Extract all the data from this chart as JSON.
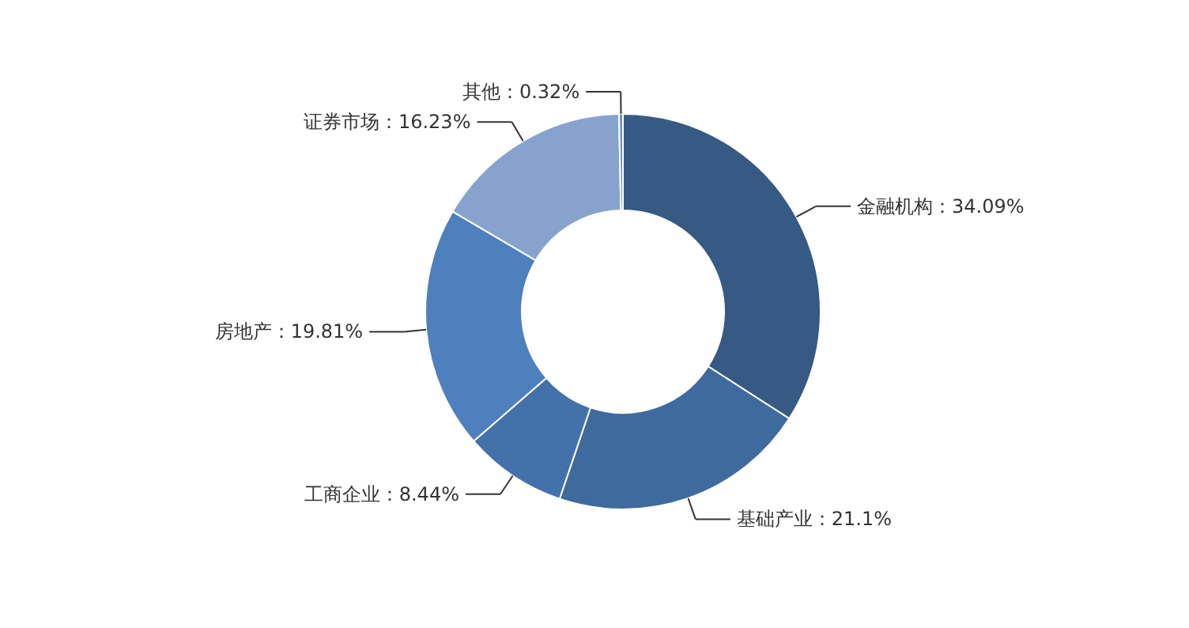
{
  "chart_data": {
    "type": "donut",
    "categories": [
      "金融机构",
      "基础产业",
      "工商企业",
      "房地产",
      "证券市场",
      "其他"
    ],
    "values": [
      34.09,
      21.1,
      8.44,
      19.81,
      16.23,
      0.32
    ],
    "colors": [
      "#365a84",
      "#3f6a9e",
      "#4471aa",
      "#4e80bd",
      "#87a2cd",
      "#6f8fc0"
    ],
    "value_labels": [
      "：34.09%",
      "：21.1%",
      "：8.44%",
      "：19.81%",
      "：16.23%",
      "：0.32%"
    ]
  }
}
